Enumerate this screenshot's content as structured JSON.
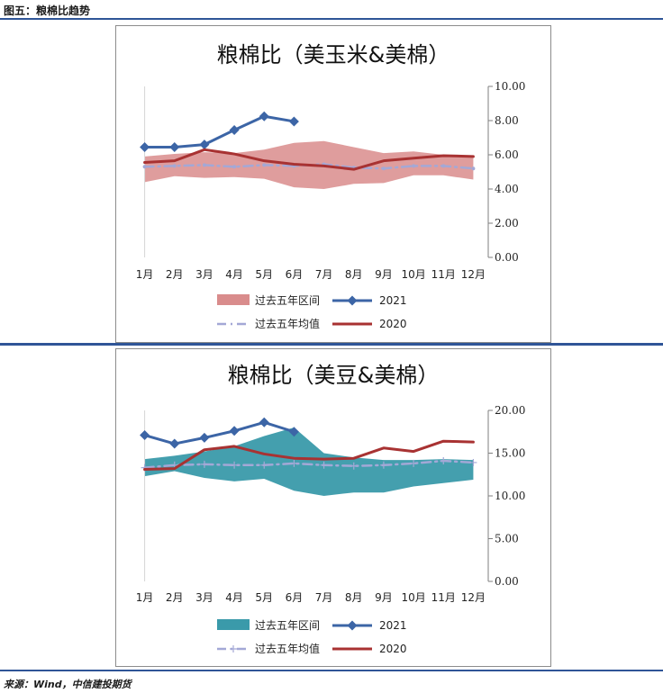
{
  "figure": {
    "title": "图五：粮棉比趋势",
    "source": "来源：Wind，中信建投期货"
  },
  "colors": {
    "rule": "#2f5597",
    "series_2021": "#3c65a6",
    "series_2020": "#a83232",
    "avg": "#a3a8d6"
  },
  "chart_data": [
    {
      "type": "line",
      "title": "粮棉比（美玉米&美棉）",
      "categories": [
        "1月",
        "2月",
        "3月",
        "4月",
        "5月",
        "6月",
        "7月",
        "8月",
        "9月",
        "10月",
        "11月",
        "12月"
      ],
      "ylim": [
        0,
        10
      ],
      "yticks": [
        "0.00",
        "2.00",
        "4.00",
        "6.00",
        "8.00",
        "10.00"
      ],
      "axis_position": "right",
      "grid": false,
      "legend_position": "bottom",
      "band": {
        "name": "过去五年区间",
        "color": "#d98c8c",
        "low": [
          4.4,
          4.75,
          4.65,
          4.7,
          4.6,
          4.1,
          4.0,
          4.3,
          4.35,
          4.8,
          4.8,
          4.55
        ],
        "high": [
          5.9,
          6.05,
          6.15,
          6.1,
          6.3,
          6.7,
          6.8,
          6.45,
          6.1,
          6.2,
          6.0,
          5.95
        ]
      },
      "series": [
        {
          "name": "2021",
          "color": "#3c65a6",
          "marker": "diamond",
          "values": [
            6.45,
            6.45,
            6.6,
            7.45,
            8.25,
            7.95,
            null,
            null,
            null,
            null,
            null,
            null
          ]
        },
        {
          "name": "过去五年均值",
          "color": "#a3a8d6",
          "style": "dashdot",
          "marker": "dot",
          "values": [
            5.3,
            5.35,
            5.4,
            5.3,
            5.4,
            5.35,
            5.45,
            5.25,
            5.2,
            5.35,
            5.35,
            5.2
          ]
        },
        {
          "name": "2020",
          "color": "#a83232",
          "values": [
            5.55,
            5.65,
            6.3,
            6.05,
            5.65,
            5.45,
            5.35,
            5.15,
            5.65,
            5.8,
            5.95,
            5.9
          ]
        }
      ],
      "legend": [
        {
          "label": "过去五年区间",
          "kind": "band",
          "color": "#d98c8c"
        },
        {
          "label": "2021",
          "kind": "line-diamond",
          "color": "#3c65a6"
        },
        {
          "label": "过去五年均值",
          "kind": "dashdot",
          "color": "#a3a8d6"
        },
        {
          "label": "2020",
          "kind": "line",
          "color": "#a83232"
        }
      ]
    },
    {
      "type": "line",
      "title": "粮棉比（美豆&美棉）",
      "categories": [
        "1月",
        "2月",
        "3月",
        "4月",
        "5月",
        "6月",
        "7月",
        "8月",
        "9月",
        "10月",
        "11月",
        "12月"
      ],
      "ylim": [
        0,
        20
      ],
      "yticks": [
        "0.00",
        "5.00",
        "10.00",
        "15.00",
        "20.00"
      ],
      "axis_position": "right",
      "grid": false,
      "legend_position": "bottom",
      "band": {
        "name": "过去五年区间",
        "color": "#3a9aaa",
        "low": [
          12.3,
          12.9,
          12.1,
          11.7,
          12.0,
          10.6,
          10.0,
          10.4,
          10.4,
          11.1,
          11.5,
          11.9
        ],
        "high": [
          14.3,
          14.7,
          15.2,
          15.8,
          17.0,
          18.0,
          15.0,
          14.5,
          14.2,
          14.2,
          14.3,
          14.2
        ]
      },
      "series": [
        {
          "name": "2021",
          "color": "#3c65a6",
          "marker": "diamond",
          "values": [
            17.1,
            16.1,
            16.8,
            17.6,
            18.6,
            17.5,
            null,
            null,
            null,
            null,
            null,
            null
          ]
        },
        {
          "name": "过去五年均值",
          "color": "#a3a8d6",
          "style": "dashdot",
          "marker": "plus",
          "values": [
            13.3,
            13.6,
            13.7,
            13.6,
            13.6,
            13.8,
            13.6,
            13.5,
            13.6,
            13.8,
            14.1,
            13.9
          ]
        },
        {
          "name": "2020",
          "color": "#a83232",
          "values": [
            13.1,
            13.2,
            15.4,
            15.8,
            14.9,
            14.4,
            14.3,
            14.4,
            15.6,
            15.2,
            16.4,
            16.3
          ]
        }
      ],
      "legend": [
        {
          "label": "过去五年区间",
          "kind": "band",
          "color": "#3a9aaa"
        },
        {
          "label": "2021",
          "kind": "line-diamond",
          "color": "#3c65a6"
        },
        {
          "label": "过去五年均值",
          "kind": "dashdot-plus",
          "color": "#a3a8d6"
        },
        {
          "label": "2020",
          "kind": "line",
          "color": "#a83232"
        }
      ]
    }
  ]
}
